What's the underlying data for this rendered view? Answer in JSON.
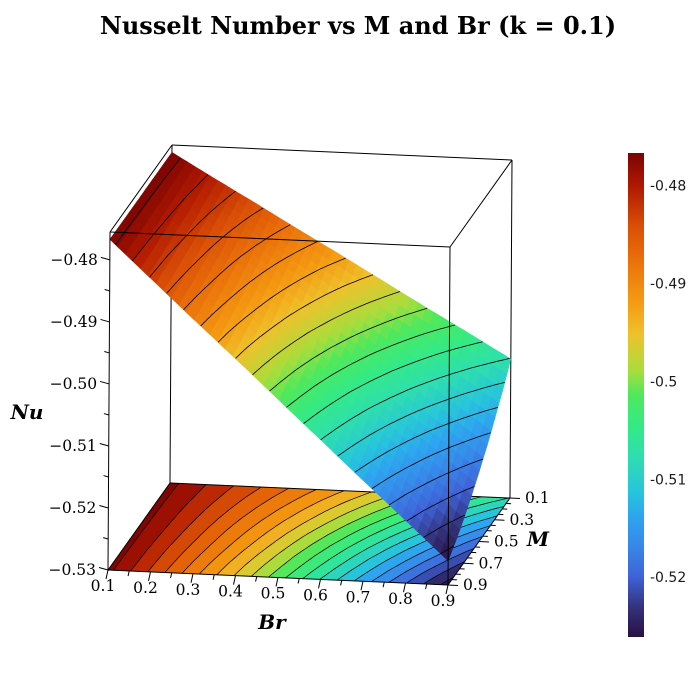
{
  "page": {
    "background": "#ffffff"
  },
  "chart_data": {
    "type": "3d-surface-with-contour-projection",
    "title": "Nusselt Number vs M and Br (k = 0.1)",
    "x_axis": {
      "label": "Br",
      "range": [
        0.1,
        0.9
      ],
      "tick_values": [
        0.1,
        0.2,
        0.3,
        0.4,
        0.5,
        0.6,
        0.7,
        0.8,
        0.9
      ],
      "tick_labels": [
        "0.1",
        "0.2",
        "0.3",
        "0.4",
        "0.5",
        "0.6",
        "0.7",
        "0.8",
        "0.9"
      ],
      "minor_tick_step": 0.05
    },
    "y_axis": {
      "label": "M",
      "range": [
        0.1,
        0.9
      ],
      "tick_values": [
        0.1,
        0.3,
        0.5,
        0.7,
        0.9
      ],
      "tick_labels": [
        "0.1",
        "0.3",
        "0.5",
        "0.7",
        "0.9"
      ],
      "minor_tick_step": 0.05
    },
    "z_axis": {
      "label": "Nu",
      "range": [
        -0.53,
        -0.4755
      ],
      "tick_values": [
        -0.48,
        -0.49,
        -0.5,
        -0.51,
        -0.52,
        -0.53
      ],
      "tick_labels": [
        "−0.48",
        "−0.49",
        "−0.50",
        "−0.51",
        "−0.52",
        "−0.53"
      ],
      "minor_tick_step": 0.005
    },
    "surface": {
      "Br": [
        0.1,
        0.2,
        0.3,
        0.4,
        0.5,
        0.6,
        0.7,
        0.8,
        0.9
      ],
      "M": [
        0.1,
        0.2,
        0.3,
        0.4,
        0.5,
        0.6,
        0.7,
        0.8,
        0.9
      ],
      "Nu": [
        [
          -0.4767,
          -0.4806,
          -0.4844,
          -0.4883,
          -0.4921,
          -0.496,
          -0.4999,
          -0.5037,
          -0.5076
        ],
        [
          -0.4767,
          -0.4809,
          -0.4852,
          -0.4894,
          -0.4937,
          -0.4979,
          -0.5022,
          -0.5064,
          -0.5107
        ],
        [
          -0.4767,
          -0.4813,
          -0.4859,
          -0.4905,
          -0.4951,
          -0.4997,
          -0.5043,
          -0.5089,
          -0.5135
        ],
        [
          -0.4767,
          -0.4816,
          -0.4866,
          -0.4915,
          -0.4964,
          -0.5014,
          -0.5063,
          -0.5112,
          -0.5162
        ],
        [
          -0.4767,
          -0.4819,
          -0.4872,
          -0.4924,
          -0.4977,
          -0.5029,
          -0.5081,
          -0.5134,
          -0.5186
        ],
        [
          -0.4767,
          -0.4822,
          -0.4877,
          -0.4932,
          -0.4988,
          -0.5043,
          -0.5098,
          -0.5153,
          -0.5208
        ],
        [
          -0.4767,
          -0.4825,
          -0.4882,
          -0.494,
          -0.4998,
          -0.5055,
          -0.5113,
          -0.517,
          -0.5228
        ],
        [
          -0.4767,
          -0.4827,
          -0.4887,
          -0.4947,
          -0.5006,
          -0.5066,
          -0.5126,
          -0.5186,
          -0.5246
        ],
        [
          -0.4767,
          -0.4829,
          -0.4891,
          -0.4952,
          -0.5014,
          -0.5076,
          -0.5138,
          -0.5199,
          -0.5261
        ]
      ]
    },
    "contour": {
      "levels_start": -0.525,
      "levels_step": 0.0025,
      "levels_count": 20
    },
    "color_range": [
      -0.5261,
      -0.4767
    ],
    "colormap_stops": [
      [
        0.0,
        "#2a1045"
      ],
      [
        0.06,
        "#333179"
      ],
      [
        0.125,
        "#3f63d8"
      ],
      [
        0.19,
        "#3789e9"
      ],
      [
        0.25,
        "#2da6ef"
      ],
      [
        0.3,
        "#27c5db"
      ],
      [
        0.38,
        "#2fe0aa"
      ],
      [
        0.44,
        "#35ea83"
      ],
      [
        0.5,
        "#50e85c"
      ],
      [
        0.55,
        "#a8dd3c"
      ],
      [
        0.625,
        "#eec22c"
      ],
      [
        0.69,
        "#f59b13"
      ],
      [
        0.78,
        "#ea700a"
      ],
      [
        0.85,
        "#d94e07"
      ],
      [
        0.93,
        "#b11901"
      ],
      [
        1.0,
        "#7a0403"
      ]
    ],
    "colorbar": {
      "tick_values": [
        -0.48,
        -0.49,
        -0.5,
        -0.51,
        -0.52
      ],
      "tick_labels": [
        "-0.48",
        "-0.49",
        "-0.5",
        "-0.51",
        "-0.52"
      ]
    }
  }
}
